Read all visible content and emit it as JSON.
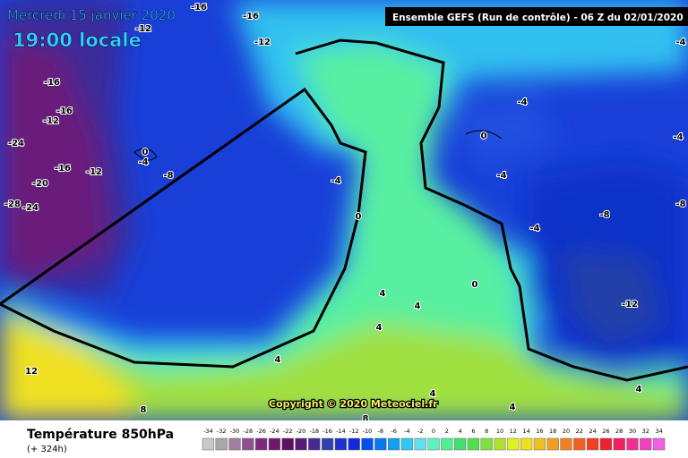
{
  "header": {
    "date": "Mercredi 15 janvier 2020",
    "time": "19:00 locale",
    "run": "Ensemble GEFS  (Run de contrôle)  -  06 Z du 02/01/2020",
    "copyright": "Copyright © 2020 Meteociel.fr"
  },
  "footer": {
    "title": "Température 850hPa",
    "lead": "(+ 324h)"
  },
  "legend": {
    "values": [
      -34,
      -32,
      -30,
      -28,
      -26,
      -24,
      -22,
      -20,
      -18,
      -16,
      -14,
      -12,
      -10,
      -8,
      -6,
      -4,
      -2,
      0,
      2,
      4,
      6,
      8,
      10,
      12,
      14,
      16,
      18,
      20,
      22,
      24,
      26,
      28,
      30,
      32,
      34
    ],
    "colors": [
      "#c8c8c8",
      "#a8a8a8",
      "#a080a0",
      "#905090",
      "#802880",
      "#701870",
      "#601060",
      "#581a78",
      "#482a90",
      "#3040b0",
      "#2030d0",
      "#1028e0",
      "#0050f0",
      "#0878f0",
      "#10a0f0",
      "#30c8f0",
      "#60e0f0",
      "#60f0c0",
      "#50f090",
      "#40e070",
      "#50e050",
      "#80e040",
      "#b0e030",
      "#e0f020",
      "#f0e020",
      "#f0c020",
      "#f0a020",
      "#f08020",
      "#f06020",
      "#f04020",
      "#f02030",
      "#f02060",
      "#f03090",
      "#f040c0",
      "#f060e0"
    ]
  },
  "contour_labels": [
    "-16",
    "-16",
    "-12",
    "-12",
    "-16",
    "-16",
    "-12",
    "-24",
    "-16",
    "-12",
    "-20",
    "-28",
    "-24",
    "0",
    "-4",
    "-8",
    "-4",
    "0",
    "0",
    "-4",
    "-4",
    "-4",
    "-8",
    "-4",
    "-8",
    "-12",
    "0",
    "4",
    "4",
    "4",
    "4",
    "4",
    "4",
    "12",
    "8",
    "8",
    "4",
    "-4"
  ]
}
